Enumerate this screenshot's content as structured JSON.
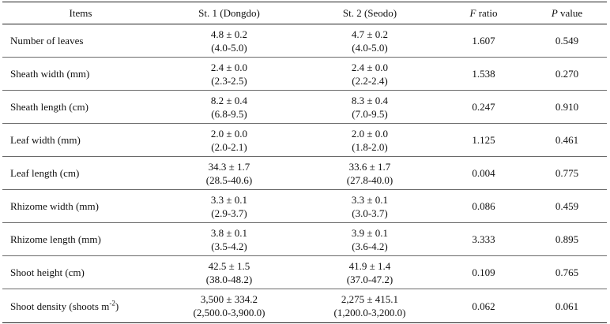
{
  "table": {
    "headers": {
      "items": "Items",
      "st1": "St. 1 (Dongdo)",
      "st2": "St. 2 (Seodo)",
      "f_letter": "F",
      "f_rest": " ratio",
      "p_letter": "P",
      "p_rest": " value"
    },
    "rows": [
      {
        "item": "Number of leaves",
        "st1_mean": "4.8 ± 0.2",
        "st1_range": "(4.0-5.0)",
        "st2_mean": "4.7 ± 0.2",
        "st2_range": "(4.0-5.0)",
        "f": "1.607",
        "p": "0.549"
      },
      {
        "item": "Sheath width (mm)",
        "st1_mean": "2.4 ± 0.0",
        "st1_range": "(2.3-2.5)",
        "st2_mean": "2.4 ± 0.0",
        "st2_range": "(2.2-2.4)",
        "f": "1.538",
        "p": "0.270"
      },
      {
        "item": "Sheath length (cm)",
        "st1_mean": "8.2 ± 0.4",
        "st1_range": "(6.8-9.5)",
        "st2_mean": "8.3 ± 0.4",
        "st2_range": "(7.0-9.5)",
        "f": "0.247",
        "p": "0.910"
      },
      {
        "item": "Leaf width (mm)",
        "st1_mean": "2.0 ± 0.0",
        "st1_range": "(2.0-2.1)",
        "st2_mean": "2.0 ± 0.0",
        "st2_range": "(1.8-2.0)",
        "f": "1.125",
        "p": "0.461"
      },
      {
        "item": "Leaf length (cm)",
        "st1_mean": "34.3 ± 1.7",
        "st1_range": "(28.5-40.6)",
        "st2_mean": "33.6 ± 1.7",
        "st2_range": "(27.8-40.0)",
        "f": "0.004",
        "p": "0.775"
      },
      {
        "item": "Rhizome width (mm)",
        "st1_mean": "3.3 ± 0.1",
        "st1_range": "(2.9-3.7)",
        "st2_mean": "3.3 ± 0.1",
        "st2_range": "(3.0-3.7)",
        "f": "0.086",
        "p": "0.459"
      },
      {
        "item": "Rhizome length (mm)",
        "st1_mean": "3.8 ± 0.1",
        "st1_range": "(3.5-4.2)",
        "st2_mean": "3.9 ± 0.1",
        "st2_range": "(3.6-4.2)",
        "f": "3.333",
        "p": "0.895"
      },
      {
        "item": "Shoot height (cm)",
        "st1_mean": "42.5 ± 1.5",
        "st1_range": "(38.0-48.2)",
        "st2_mean": "41.9 ± 1.4",
        "st2_range": "(37.0-47.2)",
        "f": "0.109",
        "p": "0.765"
      },
      {
        "item": "Shoot density (shoots m",
        "item_sup": "-2",
        "item_tail": ")",
        "st1_mean": "3,500 ± 334.2",
        "st1_range": "(2,500.0-3,900.0)",
        "st2_mean": "2,275 ± 415.1",
        "st2_range": "(1,200.0-3,200.0)",
        "f": "0.062",
        "p": "0.061"
      }
    ]
  }
}
